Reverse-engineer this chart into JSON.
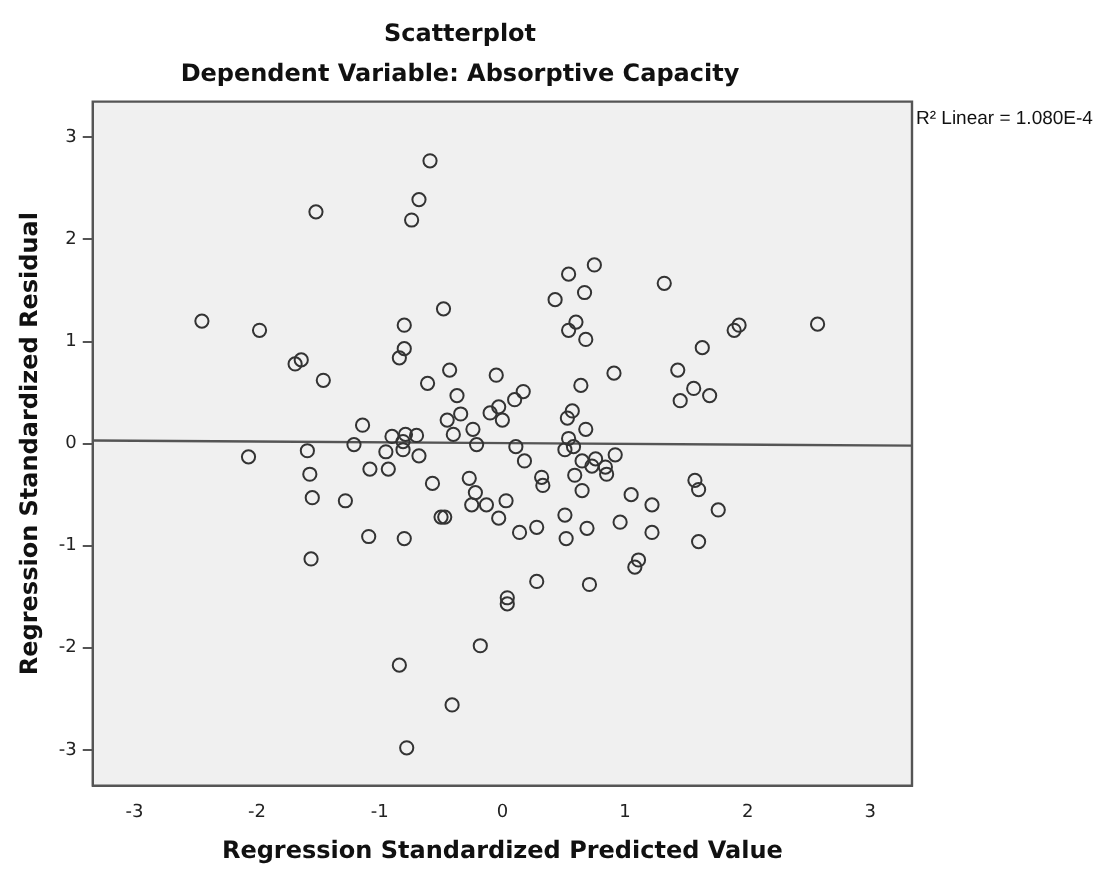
{
  "chart_data": {
    "type": "scatter",
    "title": "Scatterplot",
    "subtitle": "Dependent Variable: Absorptive Capacity",
    "xlabel": "Regression Standardized Predicted Value",
    "ylabel": "Regression Standardized Residual",
    "annotations": [
      "R² Linear = 1.080E-4"
    ],
    "xlim": [
      -3.34,
      3.34
    ],
    "ylim": [
      -3.35,
      3.35
    ],
    "xticks": [
      -3,
      -2,
      -1,
      0,
      1,
      2,
      3
    ],
    "yticks": [
      -3,
      -2,
      -1,
      0,
      1,
      2,
      3
    ],
    "grid": false,
    "legend": false,
    "series": [
      {
        "marker": "circle",
        "color": "#333333",
        "x": [
          -2.45,
          -1.98,
          -1.52,
          -0.59,
          -0.68,
          -0.74,
          -0.48,
          -0.8,
          -0.8,
          -0.84,
          -1.69,
          -1.64,
          -1.46,
          -0.61,
          -0.43,
          -0.37,
          -0.34,
          -0.45,
          -0.4,
          -0.24,
          -0.21,
          -0.1,
          -0.05,
          -1.14,
          -0.9,
          -0.79,
          -0.7,
          -0.81,
          -0.81,
          -0.95,
          -0.68,
          -1.21,
          -1.59,
          -2.07,
          -1.57,
          -1.55,
          -1.28,
          -1.08,
          -0.93,
          -0.57,
          -0.5,
          -0.47,
          -0.27,
          -0.22,
          -0.25,
          -0.13,
          -0.03,
          -1.09,
          -0.8,
          -1.56,
          -0.18,
          -0.84,
          -0.41,
          -0.78,
          0.75,
          0.54,
          0.67,
          0.43,
          1.32,
          0.6,
          0.54,
          0.68,
          1.93,
          1.89,
          2.57,
          1.63,
          1.43,
          1.56,
          1.69,
          1.45,
          0.91,
          0.64,
          0.17,
          0.1,
          -0.03,
          0.0,
          0.57,
          0.53,
          0.68,
          0.54,
          0.58,
          0.51,
          0.11,
          0.18,
          0.59,
          0.65,
          0.76,
          0.73,
          0.84,
          0.85,
          0.92,
          0.32,
          0.33,
          0.65,
          1.05,
          1.22,
          1.57,
          1.6,
          1.76,
          1.6,
          1.22,
          0.96,
          0.69,
          0.51,
          0.52,
          0.28,
          0.14,
          0.03,
          1.11,
          1.08,
          0.28,
          0.71,
          0.04,
          0.04
        ],
        "values": [
          1.2,
          1.11,
          2.27,
          2.77,
          2.39,
          2.19,
          1.32,
          1.16,
          0.93,
          0.84,
          0.78,
          0.82,
          0.62,
          0.59,
          0.72,
          0.47,
          0.29,
          0.23,
          0.09,
          0.14,
          -0.01,
          0.3,
          0.67,
          0.18,
          0.07,
          0.09,
          0.08,
          0.02,
          -0.06,
          -0.08,
          -0.12,
          -0.01,
          -0.07,
          -0.13,
          -0.3,
          -0.53,
          -0.56,
          -0.25,
          -0.25,
          -0.39,
          -0.72,
          -0.72,
          -0.34,
          -0.48,
          -0.6,
          -0.6,
          -0.73,
          -0.91,
          -0.93,
          -1.13,
          -1.98,
          -2.17,
          -2.56,
          -2.98,
          1.75,
          1.66,
          1.48,
          1.41,
          1.57,
          1.19,
          1.11,
          1.02,
          1.16,
          1.11,
          1.17,
          0.94,
          0.72,
          0.54,
          0.47,
          0.42,
          0.69,
          0.57,
          0.51,
          0.43,
          0.36,
          0.23,
          0.32,
          0.25,
          0.14,
          0.05,
          -0.03,
          -0.06,
          -0.03,
          -0.17,
          -0.31,
          -0.17,
          -0.15,
          -0.22,
          -0.23,
          -0.3,
          -0.11,
          -0.33,
          -0.41,
          -0.46,
          -0.5,
          -0.6,
          -0.36,
          -0.45,
          -0.65,
          -0.96,
          -0.87,
          -0.77,
          -0.83,
          -0.7,
          -0.93,
          -0.82,
          -0.87,
          -0.56,
          -1.14,
          -1.21,
          -1.35,
          -1.38,
          -1.51,
          -1.57
        ]
      },
      {
        "type": "line",
        "marker": "none",
        "color": "#555555",
        "x": [
          -3.34,
          3.34
        ],
        "values": [
          0.03,
          -0.02
        ]
      }
    ]
  }
}
